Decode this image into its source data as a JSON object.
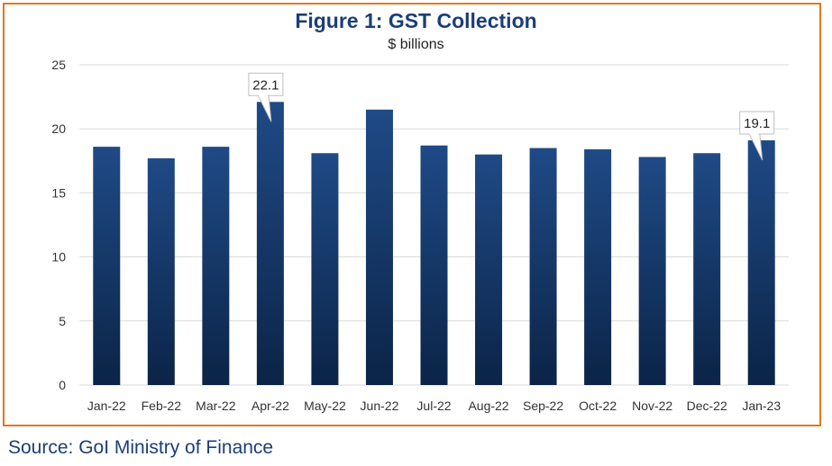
{
  "title": "Figure 1: GST Collection",
  "subtitle": "$ billions",
  "source": "Source: GoI Ministry of Finance",
  "colors": {
    "frame": "#E07A1F",
    "bar_top": "#1F4A86",
    "bar_bottom": "#0B2447",
    "grid": "#D9D9D9",
    "title": "#1B3E78"
  },
  "chart_data": {
    "type": "bar",
    "categories": [
      "Jan-22",
      "Feb-22",
      "Mar-22",
      "Apr-22",
      "May-22",
      "Jun-22",
      "Jul-22",
      "Aug-22",
      "Sep-22",
      "Oct-22",
      "Nov-22",
      "Dec-22",
      "Jan-23"
    ],
    "values": [
      18.6,
      17.7,
      18.6,
      22.1,
      18.1,
      21.5,
      18.7,
      18.0,
      18.5,
      18.4,
      17.8,
      18.1,
      19.1
    ],
    "ylim": [
      0,
      25
    ],
    "yticks": [
      0,
      5,
      10,
      15,
      20,
      25
    ],
    "grid": true,
    "annotations": [
      {
        "category": "Apr-22",
        "text": "22.1"
      },
      {
        "category": "Jan-23",
        "text": "19.1"
      }
    ]
  }
}
